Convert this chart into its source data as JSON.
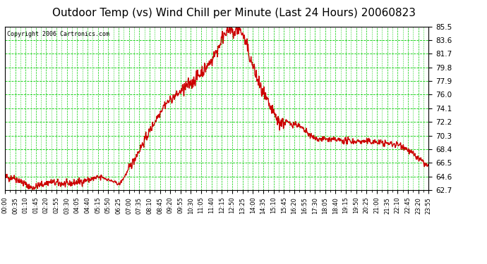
{
  "title": "Outdoor Temp (vs) Wind Chill per Minute (Last 24 Hours) 20060823",
  "copyright": "Copyright 2006 Cartronics.com",
  "bg_color": "#ffffff",
  "plot_bg_color": "#ffffff",
  "line_color": "#cc0000",
  "grid_color": "#00cc00",
  "title_color": "#000000",
  "title_fontsize": 11,
  "ylim": [
    62.7,
    85.5
  ],
  "yticks": [
    62.7,
    64.6,
    66.5,
    68.4,
    70.3,
    72.2,
    74.1,
    76.0,
    77.9,
    79.8,
    81.7,
    83.6,
    85.5
  ],
  "xtick_labels": [
    "00:00",
    "00:35",
    "01:10",
    "01:45",
    "02:20",
    "02:55",
    "03:30",
    "04:05",
    "04:40",
    "05:15",
    "05:50",
    "06:25",
    "07:00",
    "07:35",
    "08:10",
    "08:45",
    "09:20",
    "09:55",
    "10:30",
    "11:05",
    "11:40",
    "12:15",
    "12:50",
    "13:25",
    "14:00",
    "14:35",
    "15:10",
    "15:45",
    "16:20",
    "16:55",
    "17:30",
    "18:05",
    "18:40",
    "19:15",
    "19:50",
    "20:25",
    "21:00",
    "21:35",
    "22:10",
    "22:45",
    "23:20",
    "23:55"
  ],
  "line_width": 1.0
}
